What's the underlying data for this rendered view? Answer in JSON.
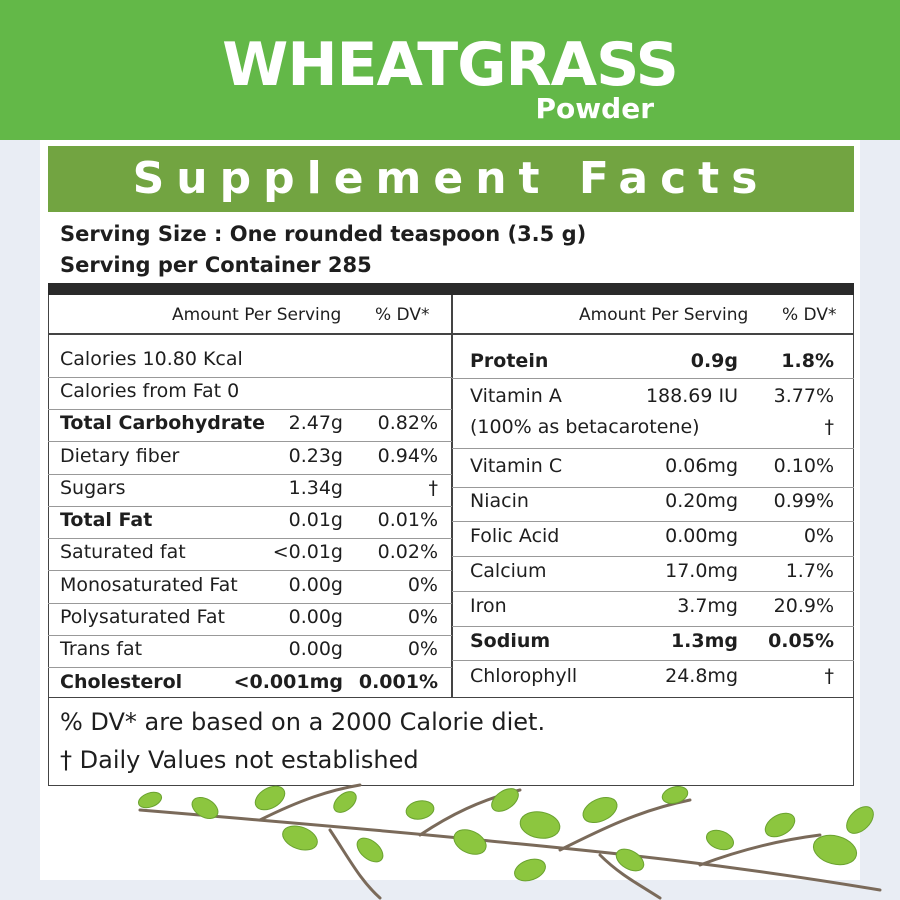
{
  "brand": {
    "title": "WHEATGRASS",
    "subtitle": "Powder"
  },
  "facts": {
    "header": "Supplement Facts",
    "serving_size": "Serving Size : One rounded teaspoon (3.5 g)",
    "servings_per_container": "Serving per Container 285",
    "left_head": {
      "amount": "Amount Per Serving",
      "dv": "% DV*"
    },
    "right_head": {
      "amount": "Amount Per Serving",
      "dv": "% DV*"
    },
    "left_rows": [
      {
        "name": "Calories 10.80 Kcal",
        "amount": "",
        "dv": "",
        "bold": false
      },
      {
        "name": "Calories from Fat 0",
        "amount": "",
        "dv": "",
        "bold": false
      },
      {
        "name": "Total Carbohydrate",
        "amount": "2.47g",
        "dv": "0.82%",
        "bold": true
      },
      {
        "name": "Dietary fiber",
        "amount": "0.23g",
        "dv": "0.94%",
        "bold": false
      },
      {
        "name": "Sugars",
        "amount": "1.34g",
        "dv": "†",
        "bold": false
      },
      {
        "name": "Total Fat",
        "amount": "0.01g",
        "dv": "0.01%",
        "bold": true
      },
      {
        "name": "Saturated fat",
        "amount": "<0.01g",
        "dv": "0.02%",
        "bold": false
      },
      {
        "name": "Monosaturated Fat",
        "amount": "0.00g",
        "dv": "0%",
        "bold": false
      },
      {
        "name": "Polysaturated Fat",
        "amount": "0.00g",
        "dv": "0%",
        "bold": false
      },
      {
        "name": "Trans fat",
        "amount": "0.00g",
        "dv": "0%",
        "bold": false
      },
      {
        "name": "Cholesterol",
        "amount": "<0.001mg",
        "dv": "0.001%",
        "bold": true
      }
    ],
    "right_rows": [
      {
        "name": "Protein",
        "amount": "0.9g",
        "dv": "1.8%",
        "bold": true
      },
      {
        "name": "Vitamin A",
        "amount": "188.69 IU",
        "dv": "3.77%",
        "bold": false,
        "note": "(100% as betacarotene)",
        "note_dv": "†"
      },
      {
        "name": "Vitamin C",
        "amount": "0.06mg",
        "dv": "0.10%",
        "bold": false
      },
      {
        "name": "Niacin",
        "amount": "0.20mg",
        "dv": "0.99%",
        "bold": false
      },
      {
        "name": "Folic Acid",
        "amount": "0.00mg",
        "dv": "0%",
        "bold": false
      },
      {
        "name": "Calcium",
        "amount": "17.0mg",
        "dv": "1.7%",
        "bold": false
      },
      {
        "name": "Iron",
        "amount": "3.7mg",
        "dv": "20.9%",
        "bold": false
      },
      {
        "name": "Sodium",
        "amount": "1.3mg",
        "dv": "0.05%",
        "bold": true
      },
      {
        "name": "Chlorophyll",
        "amount": "24.8mg",
        "dv": "†",
        "bold": false
      }
    ],
    "footnote_dv": "% DV* are based on a 2000 Calorie diet.",
    "footnote_dagger": "† Daily Values not established"
  },
  "colors": {
    "top_band": "#63b848",
    "header_band": "#72a441",
    "leaf": "#8cc63f",
    "branch": "#7a6a5a"
  },
  "decor": {
    "icon": "branch-leaves-icon"
  }
}
